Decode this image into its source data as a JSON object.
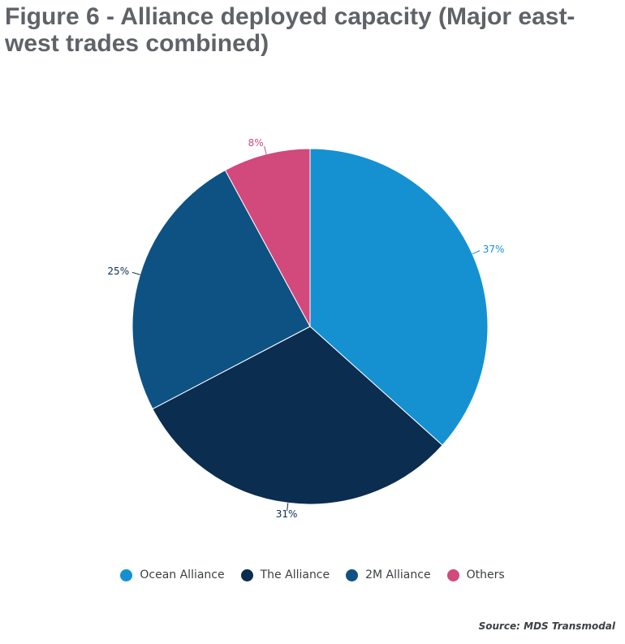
{
  "title": "Figure 6 - Alliance deployed capacity (Major east-west trades combined)",
  "source": "Source: MDS Transmodal",
  "chart_data": {
    "type": "pie",
    "title": "Figure 6 - Alliance deployed capacity (Major east-west trades combined)",
    "slices": [
      {
        "label": "Ocean Alliance",
        "value": 37,
        "display": "37%",
        "color": "#1591d1"
      },
      {
        "label": "The Alliance",
        "value": 31,
        "display": "31%",
        "color": "#0b2d50"
      },
      {
        "label": "2M Alliance",
        "value": 25,
        "display": "25%",
        "color": "#0e5283"
      },
      {
        "label": "Others",
        "value": 8,
        "display": "8%",
        "color": "#d2497c"
      }
    ],
    "legend_position": "bottom",
    "start_angle": "12 o'clock",
    "direction": "clockwise"
  }
}
